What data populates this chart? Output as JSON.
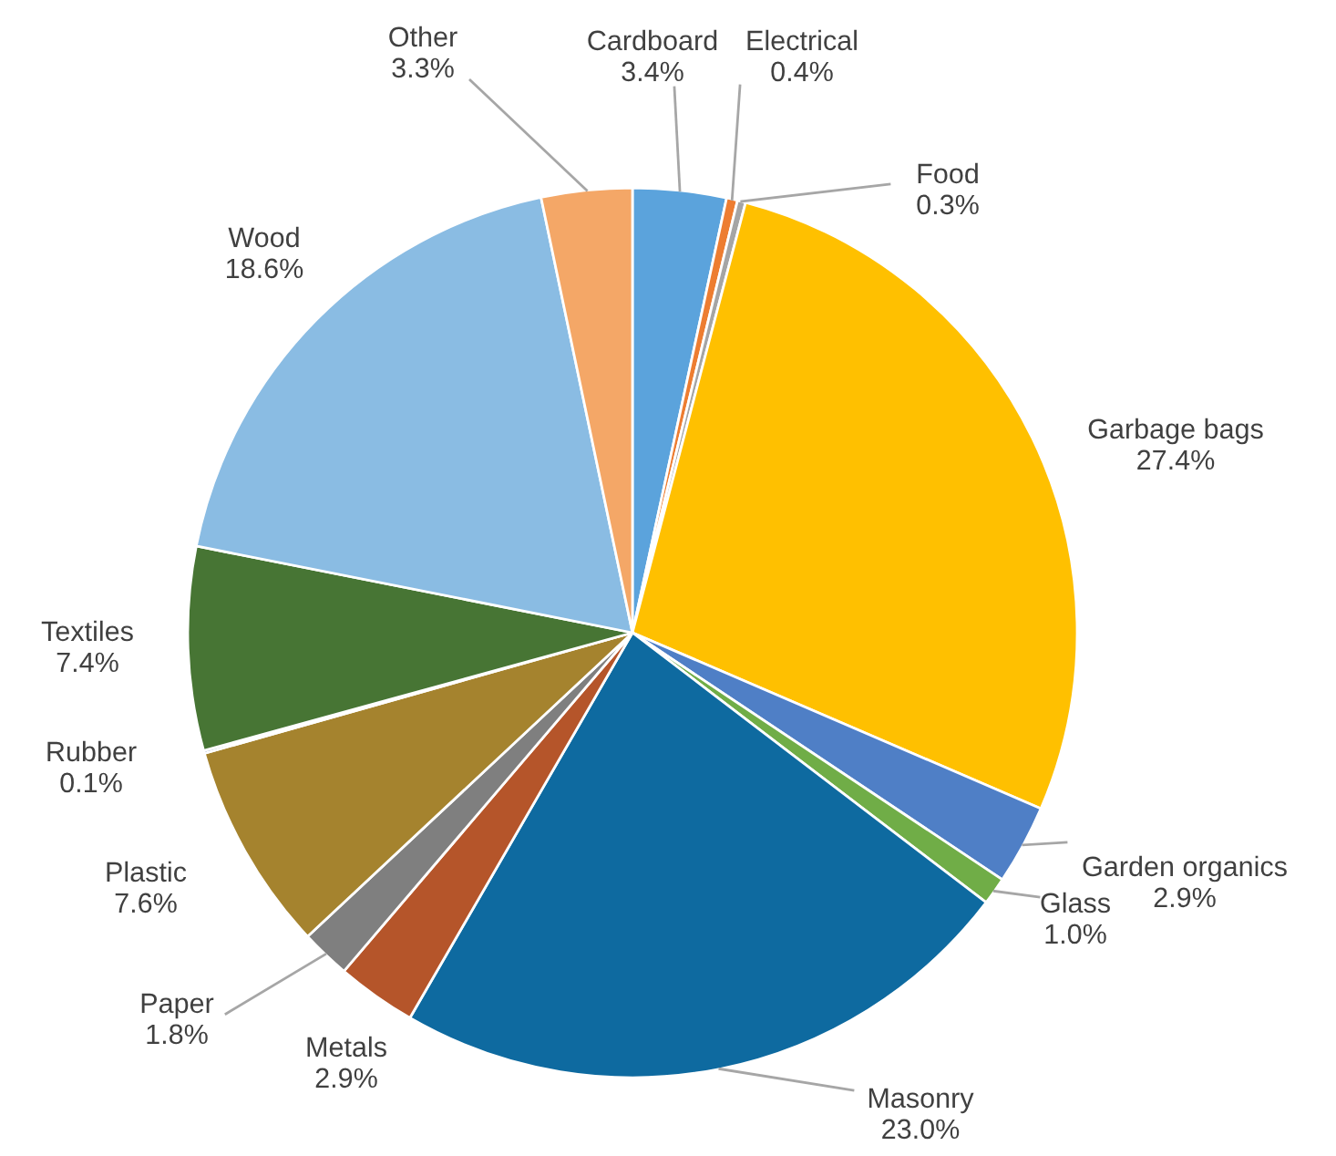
{
  "chart_data": {
    "type": "pie",
    "categories": [
      "Cardboard",
      "Electrical",
      "Food",
      "Garbage bags",
      "Garden organics",
      "Glass",
      "Masonry",
      "Metals",
      "Paper",
      "Plastic",
      "Rubber",
      "Textiles",
      "Wood",
      "Other"
    ],
    "values": [
      3.4,
      0.4,
      0.3,
      27.4,
      2.9,
      1.0,
      23.0,
      2.9,
      1.8,
      7.6,
      0.1,
      7.4,
      18.6,
      3.3
    ],
    "value_labels": [
      "3.4%",
      "0.4%",
      "0.3%",
      "27.4%",
      "2.9%",
      "1.0%",
      "23.0%",
      "2.9%",
      "1.8%",
      "7.6%",
      "0.1%",
      "7.4%",
      "18.6%",
      "3.3%"
    ],
    "colors": [
      "#5ba3dc",
      "#ed7d31",
      "#a5a5a5",
      "#ffc000",
      "#4f7fc6",
      "#70ad47",
      "#0e6aa0",
      "#b5552a",
      "#7f7f7f",
      "#a5832e",
      "#3a5a9a",
      "#477534",
      "#8abce3",
      "#f4a767"
    ],
    "legend": false
  }
}
